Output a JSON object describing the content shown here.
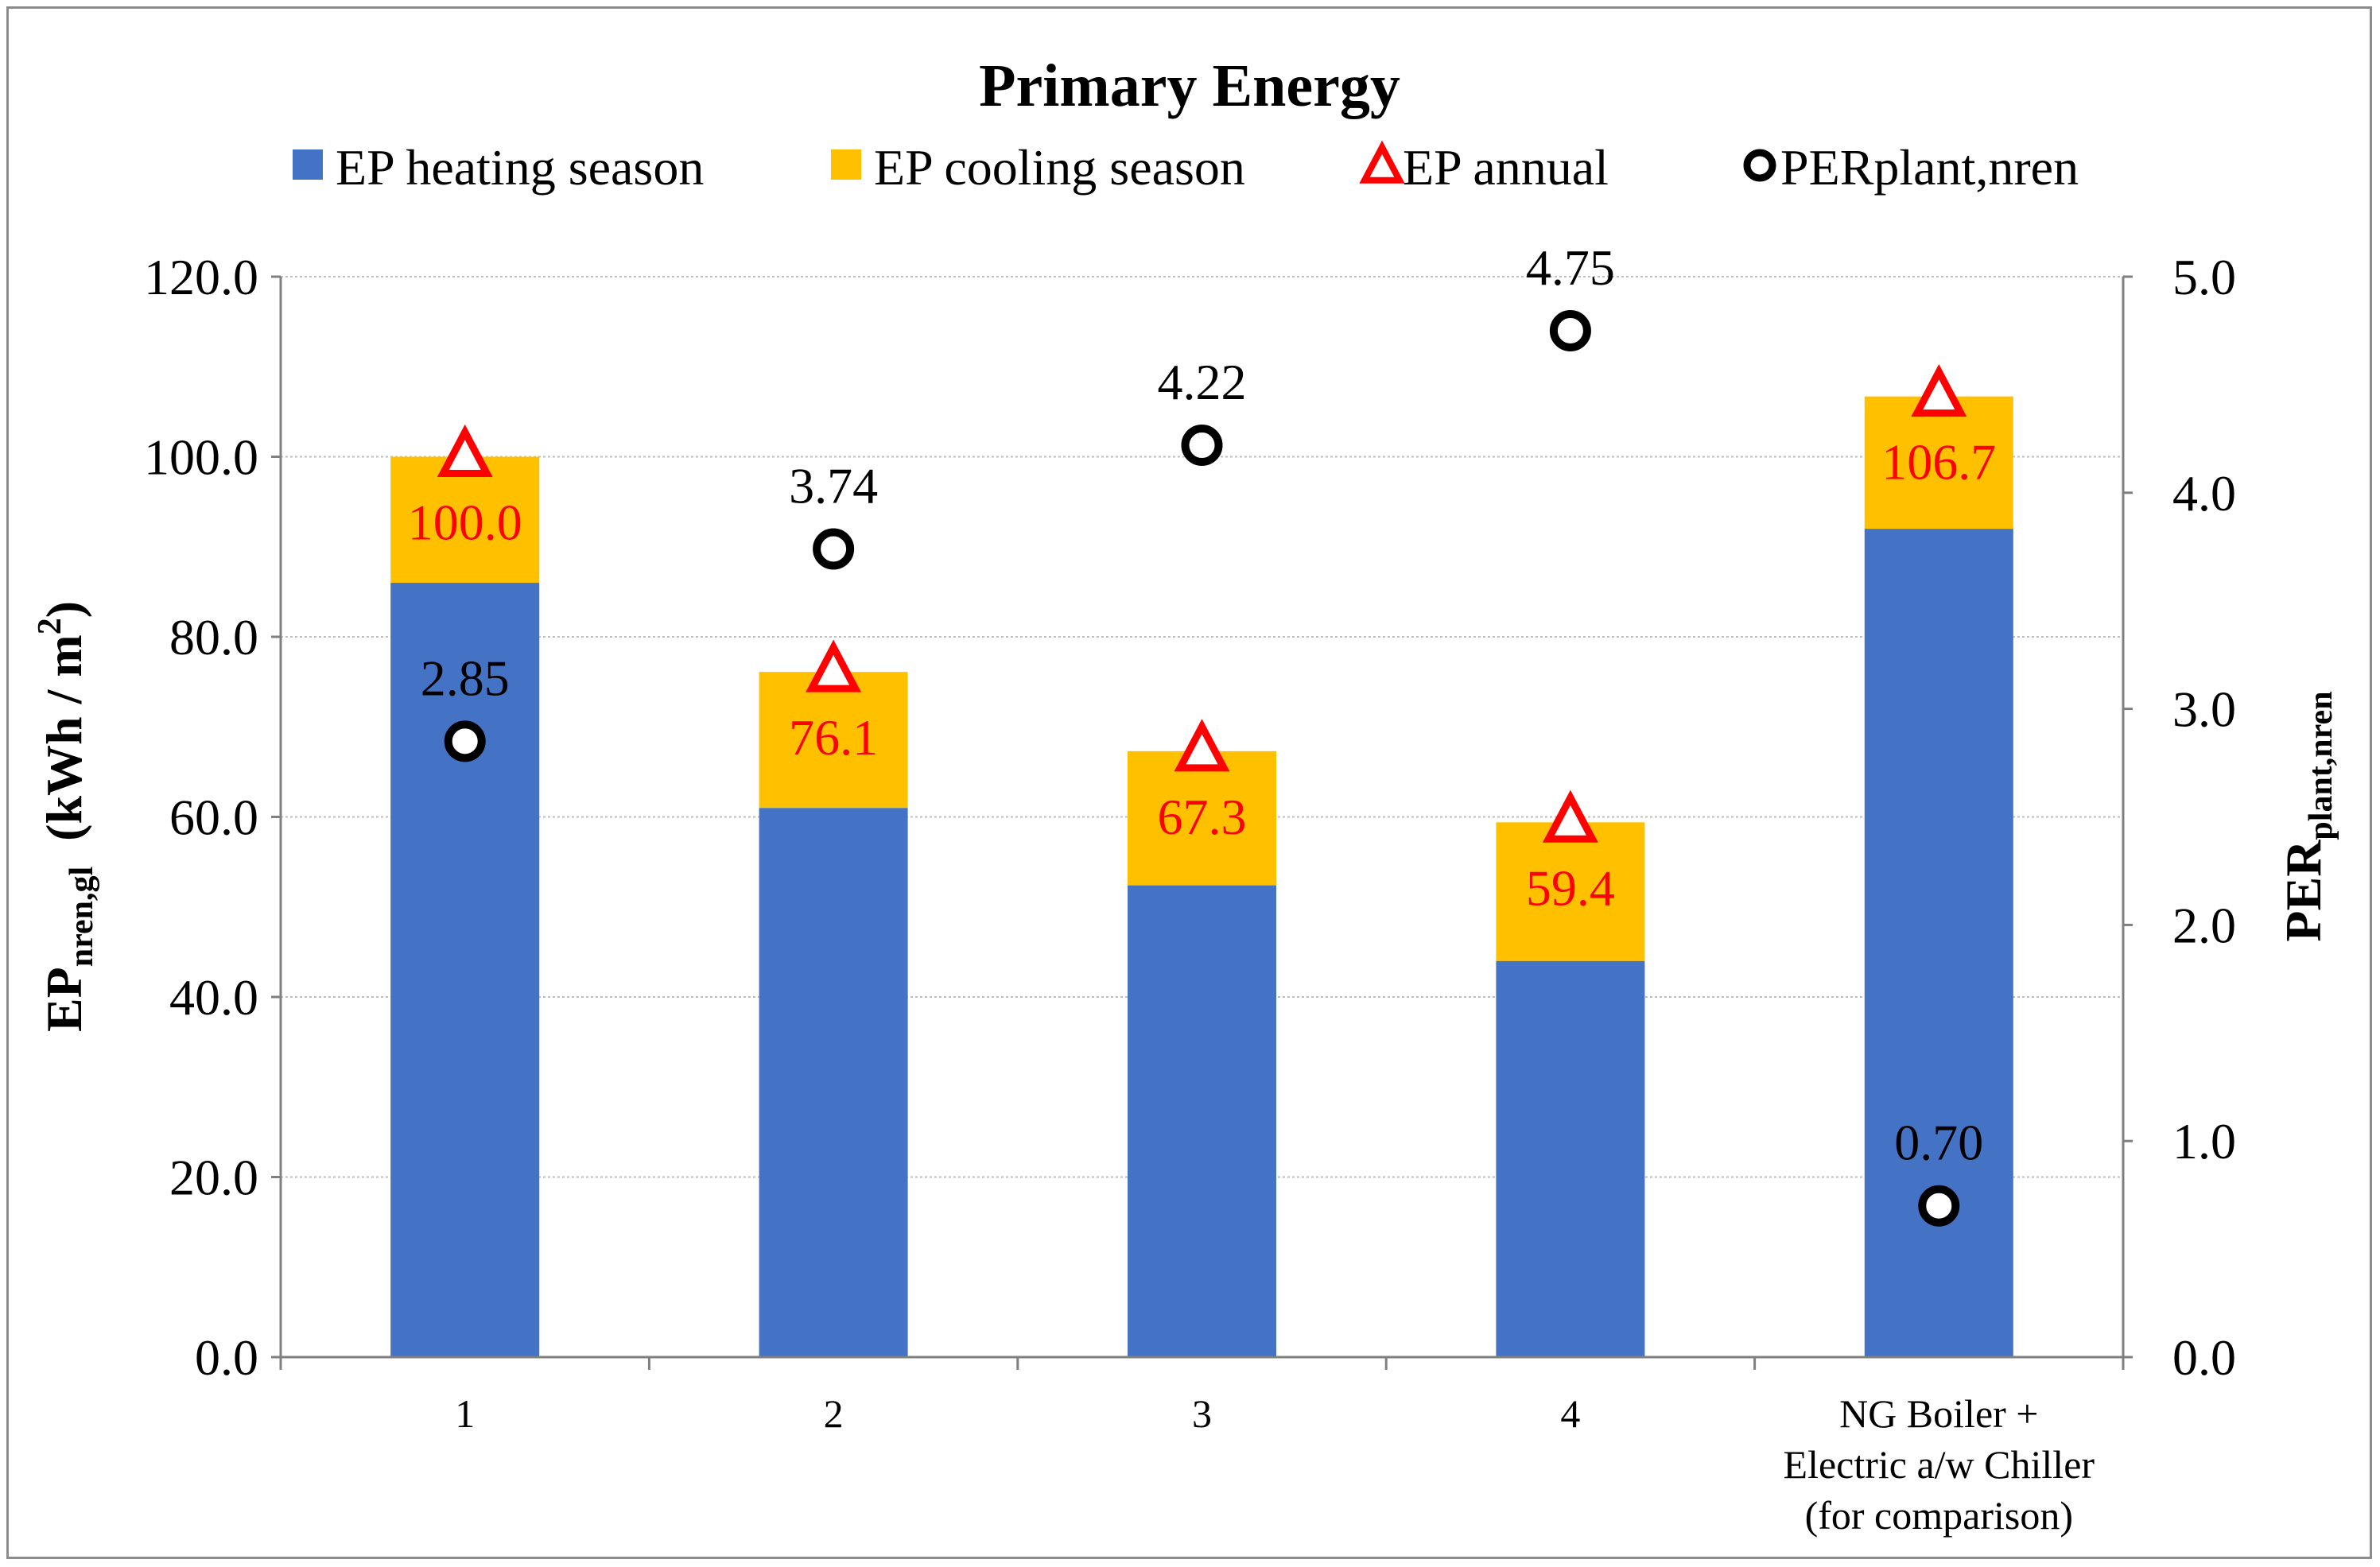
{
  "chart_data": {
    "type": "bar",
    "title": "Primary Energy",
    "categories": [
      "1",
      "2",
      "3",
      "4",
      "NG Boiler +\nElectric a/w Chiller\n(for comparison)"
    ],
    "series": [
      {
        "name": "EP heating season",
        "kind": "stacked-bar",
        "axis": "left",
        "color": "#4472C4",
        "values": [
          86.0,
          61.0,
          52.4,
          44.0,
          92.0
        ]
      },
      {
        "name": "EP cooling season",
        "kind": "stacked-bar",
        "axis": "left",
        "color": "#FFC000",
        "values": [
          14.0,
          15.1,
          14.9,
          15.4,
          14.7
        ]
      },
      {
        "name": "EP annual",
        "kind": "marker-triangle",
        "axis": "left",
        "color": "#FF0000",
        "values": [
          100.0,
          76.1,
          67.3,
          59.4,
          106.7
        ],
        "labels": [
          "100.0",
          "76.1",
          "67.3",
          "59.4",
          "106.7"
        ]
      },
      {
        "name": "PERplant,nren",
        "kind": "marker-circle",
        "axis": "right",
        "color": "#000000",
        "values": [
          2.85,
          3.74,
          4.22,
          4.75,
          0.7
        ],
        "labels": [
          "2.85",
          "3.74",
          "4.22",
          "4.75",
          "0.70"
        ]
      }
    ],
    "y_left": {
      "label_main": "EP",
      "label_sub": "nren,gl",
      "label_unit": "(kWh / m",
      "label_sup": "2",
      "label_close": ")",
      "min": 0,
      "max": 120,
      "step": 20,
      "ticks": [
        "0.0",
        "20.0",
        "40.0",
        "60.0",
        "80.0",
        "100.0",
        "120.0"
      ]
    },
    "y_right": {
      "label_main": "PER",
      "label_sub": "plant,nren",
      "min": 0,
      "max": 5,
      "step": 1,
      "ticks": [
        "0.0",
        "1.0",
        "2.0",
        "3.0",
        "4.0",
        "5.0"
      ]
    },
    "grid": true,
    "legend_position": "top"
  },
  "colors": {
    "heating": "#4472C4",
    "cooling": "#FFC000",
    "annual": "#FF0000",
    "per": "#000000",
    "grid": "#bfbfbf",
    "axis": "#808080"
  }
}
